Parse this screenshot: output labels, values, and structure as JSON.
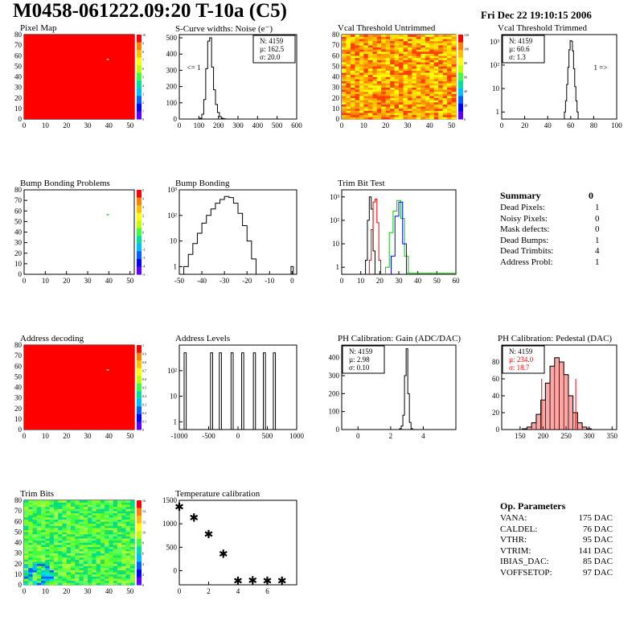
{
  "header": {
    "title": "M0458-061222.09:20 T-10a (C5)",
    "timestamp": "Fri Dec 22 19:10:15 2006"
  },
  "colors": {
    "map_red": "#ff0000",
    "hist_black": "#000000",
    "trim_red": "#ff0000",
    "trim_green": "#00cc00",
    "trim_blue": "#0000ff",
    "ped_fill": "#ff0000"
  },
  "chart_data": [
    {
      "id": "pixel-map",
      "type": "heatmap",
      "title": "Pixel Map",
      "xlim": [
        0,
        52
      ],
      "ylim": [
        0,
        80
      ],
      "xticks": [
        "0",
        "10",
        "20",
        "30",
        "40",
        "50"
      ],
      "yticks": [
        "0",
        "10",
        "20",
        "30",
        "40",
        "50",
        "60",
        "70",
        "80"
      ],
      "zticks": [
        "0",
        "1",
        "2",
        "3",
        "4",
        "5",
        "6",
        "7",
        "8",
        "9",
        "10"
      ],
      "fill": "uniform red",
      "marker_pixel": [
        39,
        56
      ]
    },
    {
      "id": "scurve-noise",
      "type": "line",
      "title": "S-Curve widths: Noise (e⁻)",
      "xlim": [
        0,
        600
      ],
      "ylim": [
        0,
        520
      ],
      "xticks": [
        "0",
        "100",
        "200",
        "300",
        "400",
        "500",
        "600"
      ],
      "yticks": [
        "0",
        "100",
        "200",
        "300",
        "400",
        "500"
      ],
      "stats": [
        "N: 4159",
        "µ: 162.5",
        "σ: 20.0"
      ],
      "annotation": "<= 1",
      "x": [
        110,
        120,
        130,
        140,
        150,
        160,
        170,
        180,
        190,
        200,
        210,
        220,
        230
      ],
      "y": [
        5,
        30,
        120,
        310,
        480,
        500,
        320,
        180,
        90,
        40,
        15,
        5,
        2
      ]
    },
    {
      "id": "vcal-untrimmed",
      "type": "heatmap",
      "title": "Vcal Threshold Untrimmed",
      "xlim": [
        0,
        52
      ],
      "ylim": [
        0,
        80
      ],
      "xticks": [
        "0",
        "10",
        "20",
        "30",
        "40",
        "50"
      ],
      "yticks": [
        "0",
        "10",
        "20",
        "30",
        "40",
        "50",
        "60",
        "70",
        "80"
      ],
      "zticks": [
        "0",
        "20",
        "40",
        "60",
        "80",
        "100",
        "120"
      ],
      "fill": "noisy orange/yellow"
    },
    {
      "id": "vcal-trimmed",
      "type": "line",
      "title": "Vcal Threshold Trimmed",
      "xlim": [
        0,
        100
      ],
      "log_y": true,
      "ylim": [
        0.5,
        2000
      ],
      "xticks": [
        "0",
        "20",
        "40",
        "60",
        "80",
        "100"
      ],
      "yticks": [
        "1",
        "10",
        "10²",
        "10³"
      ],
      "stats": [
        "N: 4159",
        "µ: 60.6",
        "σ:  1.3"
      ],
      "annotation": "1 =>",
      "x": [
        55,
        56,
        57,
        58,
        59,
        60,
        61,
        62,
        63,
        64,
        65,
        66
      ],
      "y": [
        1,
        3,
        15,
        80,
        450,
        1100,
        1050,
        400,
        70,
        12,
        3,
        1
      ]
    },
    {
      "id": "bump-map",
      "type": "heatmap",
      "title": "Bump Bonding Problems",
      "xlim": [
        0,
        52
      ],
      "ylim": [
        0,
        80
      ],
      "xticks": [
        "0",
        "10",
        "20",
        "30",
        "40",
        "50"
      ],
      "yticks": [
        "0",
        "10",
        "20",
        "30",
        "40",
        "50",
        "60",
        "70",
        "80"
      ],
      "zticks": [
        "-5",
        "-4",
        "-3",
        "-2",
        "-1",
        "0",
        "1",
        "2",
        "3",
        "4",
        "5"
      ],
      "fill": "empty",
      "marker_pixel": [
        39,
        56
      ]
    },
    {
      "id": "bump-bonding",
      "type": "line",
      "title": "Bump Bonding",
      "xlim": [
        -50,
        2
      ],
      "log_y": true,
      "ylim": [
        0.5,
        1000
      ],
      "xticks": [
        "-50",
        "-40",
        "-30",
        "-20",
        "-10",
        "0"
      ],
      "yticks": [
        "1",
        "10",
        "10²",
        "10³"
      ],
      "x": [
        -47,
        -45,
        -43,
        -41,
        -39,
        -37,
        -35,
        -33,
        -31,
        -29,
        -27,
        -25,
        -23,
        -21,
        -19,
        -17,
        0
      ],
      "y": [
        1,
        3,
        8,
        20,
        50,
        100,
        180,
        300,
        420,
        550,
        500,
        300,
        120,
        40,
        10,
        2,
        1
      ]
    },
    {
      "id": "trim-bit-test",
      "type": "line",
      "title": "Trim Bit Test",
      "xlim": [
        0,
        60
      ],
      "log_y": true,
      "ylim": [
        0.5,
        2000
      ],
      "xticks": [
        "0",
        "10",
        "20",
        "30",
        "40",
        "50",
        "60"
      ],
      "yticks": [
        "1",
        "10",
        "10²",
        "10³"
      ],
      "series": [
        {
          "color": "#000000",
          "x": [
            13,
            14,
            15,
            16,
            17
          ],
          "y": [
            2,
            100,
            1000,
            300,
            5
          ]
        },
        {
          "color": "#ff0000",
          "x": [
            15,
            16,
            17,
            18,
            19,
            20
          ],
          "y": [
            2,
            40,
            600,
            800,
            80,
            2
          ]
        },
        {
          "color": "#00cc00",
          "x": [
            24,
            26,
            28,
            30,
            32,
            34
          ],
          "y": [
            1,
            30,
            250,
            700,
            120,
            3
          ]
        },
        {
          "color": "#0000ff",
          "x": [
            27,
            29,
            31,
            33
          ],
          "y": [
            3,
            150,
            600,
            10
          ]
        }
      ]
    },
    {
      "id": "address-map",
      "type": "heatmap",
      "title": "Address decoding",
      "xlim": [
        0,
        52
      ],
      "ylim": [
        0,
        80
      ],
      "xticks": [
        "0",
        "10",
        "20",
        "30",
        "40",
        "50"
      ],
      "yticks": [
        "0",
        "10",
        "20",
        "30",
        "40",
        "50",
        "60",
        "70",
        "80"
      ],
      "zticks": [
        "0",
        "0.1",
        "0.2",
        "0.3",
        "0.4",
        "0.5",
        "0.6",
        "0.7",
        "0.8",
        "0.9",
        "1"
      ],
      "fill": "uniform red",
      "marker_pixel": [
        39,
        56
      ]
    },
    {
      "id": "address-levels",
      "type": "line",
      "title": "Address Levels",
      "xlim": [
        -1000,
        1000
      ],
      "log_y": true,
      "ylim": [
        0.5,
        1000
      ],
      "xticks": [
        "-1000",
        "-500",
        "0",
        "500",
        "1000"
      ],
      "yticks": [
        "1",
        "10",
        "10²"
      ],
      "peaks": [
        -900,
        -450,
        -300,
        -100,
        80,
        280,
        450,
        620
      ],
      "peak_height": 500
    },
    {
      "id": "ph-gain",
      "type": "line",
      "title": "PH Calibration: Gain (ADC/DAC)",
      "xlim": [
        -1,
        6
      ],
      "ylim": [
        0,
        470
      ],
      "xticks": [
        "0",
        "2",
        "4"
      ],
      "yticks": [
        "0",
        "100",
        "200",
        "300",
        "400"
      ],
      "stats": [
        "N: 4159",
        "µ: 2.98",
        "σ: 0.10"
      ],
      "x": [
        2.6,
        2.7,
        2.8,
        2.9,
        3.0,
        3.1,
        3.2,
        3.3
      ],
      "y": [
        5,
        20,
        80,
        300,
        450,
        200,
        40,
        5
      ]
    },
    {
      "id": "ph-pedestal",
      "type": "line",
      "title": "PH Calibration: Pedestal (DAC)",
      "xlim": [
        110,
        360
      ],
      "ylim": [
        0,
        100
      ],
      "xticks": [
        "150",
        "200",
        "250",
        "300",
        "350"
      ],
      "yticks": [
        "0",
        "20",
        "40",
        "60",
        "80"
      ],
      "stats_black": [
        "N: 4159"
      ],
      "stats_red": [
        "µ: 234.0",
        "σ: 18.7"
      ],
      "x": [
        160,
        170,
        180,
        190,
        200,
        210,
        220,
        230,
        240,
        250,
        260,
        270,
        280,
        290,
        300
      ],
      "y": [
        1,
        3,
        8,
        18,
        35,
        55,
        75,
        85,
        80,
        65,
        40,
        20,
        8,
        3,
        1
      ],
      "cut_lines": [
        197,
        271
      ]
    },
    {
      "id": "trim-bits",
      "type": "heatmap",
      "title": "Trim Bits",
      "xlim": [
        0,
        52
      ],
      "ylim": [
        0,
        80
      ],
      "xticks": [
        "0",
        "10",
        "20",
        "30",
        "40",
        "50"
      ],
      "yticks": [
        "0",
        "10",
        "20",
        "30",
        "40",
        "50",
        "60",
        "70",
        "80"
      ],
      "zticks": [
        "0",
        "2",
        "4",
        "6",
        "8",
        "10",
        "12",
        "14",
        "16"
      ],
      "fill": "noisy green with blue lower-left"
    },
    {
      "id": "temperature",
      "type": "scatter",
      "title": "Temperature calibration",
      "xlim": [
        0,
        8
      ],
      "ylim": [
        -300,
        1500
      ],
      "xticks": [
        "0",
        "2",
        "4",
        "6"
      ],
      "yticks": [
        "0",
        "500",
        "1000",
        "1500"
      ],
      "x": [
        0,
        1,
        2,
        3,
        4,
        5,
        6,
        7
      ],
      "y": [
        1380,
        1150,
        800,
        380,
        -200,
        -190,
        -200,
        -200
      ]
    }
  ],
  "summary": {
    "title": "Summary",
    "total": "0",
    "rows": [
      {
        "label": "Dead Pixels:",
        "value": "1"
      },
      {
        "label": "Noisy Pixels:",
        "value": "0"
      },
      {
        "label": "Mask defects:",
        "value": "0"
      },
      {
        "label": "Dead Bumps:",
        "value": "1"
      },
      {
        "label": "Dead Trimbits:",
        "value": "4"
      },
      {
        "label": "Address Probl:",
        "value": "1"
      }
    ]
  },
  "op_params": {
    "title": "Op. Parameters",
    "rows": [
      {
        "label": "VANA:",
        "value": "175 DAC"
      },
      {
        "label": "CALDEL:",
        "value": "76 DAC"
      },
      {
        "label": "VTHR:",
        "value": "95 DAC"
      },
      {
        "label": "VTRIM:",
        "value": "141 DAC"
      },
      {
        "label": "IBIAS_DAC:",
        "value": "85 DAC"
      },
      {
        "label": "VOFFSETOP:",
        "value": "97 DAC"
      }
    ]
  }
}
